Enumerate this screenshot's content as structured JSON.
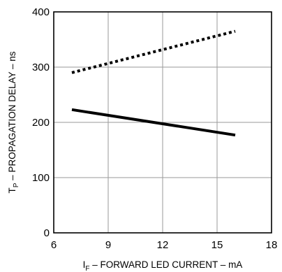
{
  "chart_data": {
    "type": "line",
    "xlabel": {
      "prefix": "I",
      "sub": "F",
      "rest": " – FORWARD LED CURRENT – mA"
    },
    "ylabel": {
      "prefix": "T",
      "sub": "P",
      "rest": " – PROPAGATION DELAY – ns"
    },
    "xlim": [
      6,
      18
    ],
    "ylim": [
      0,
      400
    ],
    "x_ticks": [
      6,
      9,
      12,
      15,
      18
    ],
    "y_ticks": [
      0,
      100,
      200,
      300,
      400
    ],
    "grid": true,
    "series": [
      {
        "style": "dotted",
        "x": [
          7,
          16
        ],
        "y": [
          290,
          365
        ]
      },
      {
        "style": "solid",
        "x": [
          7,
          16
        ],
        "y": [
          223,
          177
        ]
      }
    ]
  }
}
